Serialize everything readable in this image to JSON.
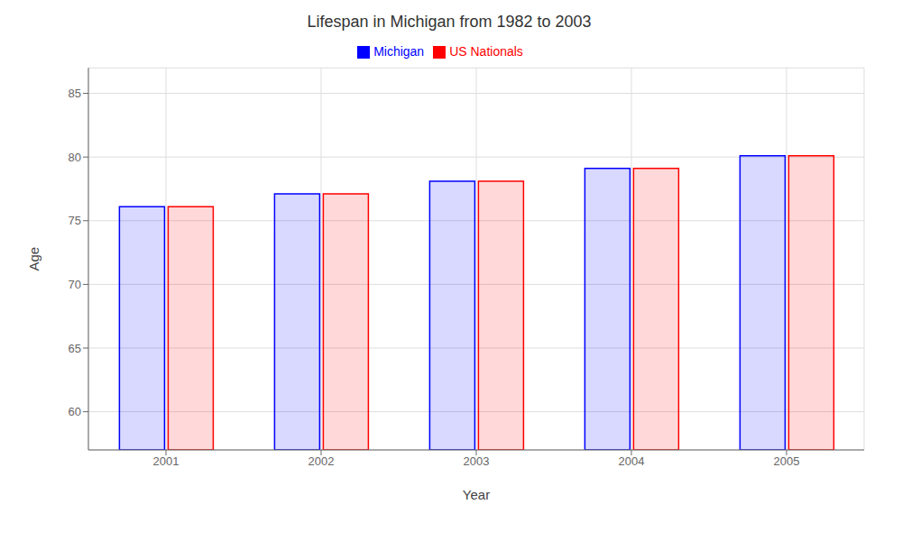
{
  "chart_data": {
    "type": "bar",
    "title": "Lifespan in Michigan from 1982 to 2003",
    "x_label": "Year",
    "y_label": "Age",
    "categories": [
      "2001",
      "2002",
      "2003",
      "2004",
      "2005"
    ],
    "series": [
      {
        "name": "Michigan",
        "color": "#0000ff",
        "values": [
          76.1,
          77.1,
          78.1,
          79.1,
          80.1
        ]
      },
      {
        "name": "US Nationals",
        "color": "#ff0000",
        "values": [
          76.1,
          77.1,
          78.1,
          79.1,
          80.1
        ]
      }
    ],
    "ylim": [
      57,
      87
    ],
    "yticks": [
      60,
      65,
      70,
      75,
      80,
      85
    ],
    "grid": true,
    "legend": "upper center"
  }
}
